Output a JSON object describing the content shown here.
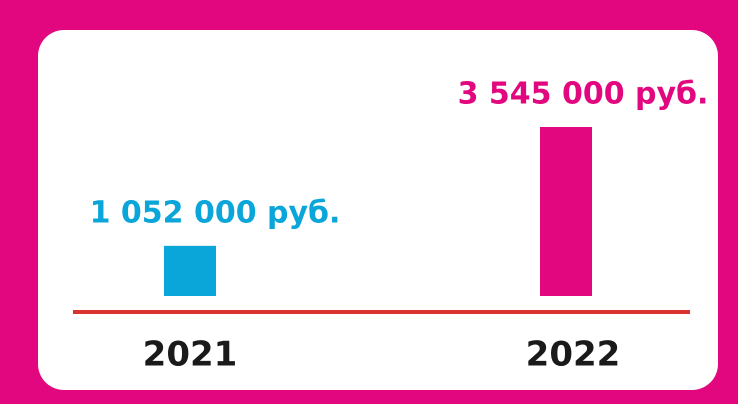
{
  "chart_data": {
    "type": "bar",
    "categories": [
      "2021",
      "2022"
    ],
    "values": [
      1052000,
      3545000
    ],
    "value_labels": [
      "1 052 000 руб.",
      "3 545 000 руб."
    ],
    "colors": [
      "#0aa5d9",
      "#e2077e"
    ]
  }
}
